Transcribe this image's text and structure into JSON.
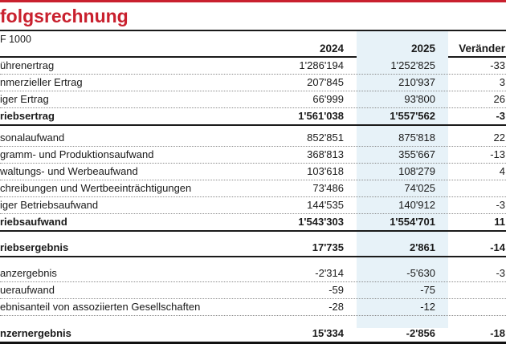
{
  "page": {
    "title": "folgsrechnung",
    "unit_label": "F 1000",
    "accent_red": "#c9202e",
    "highlight_blue": "#e7f2f8"
  },
  "table": {
    "columns": [
      "2024",
      "2025",
      "Veränder"
    ],
    "rows": [
      {
        "label": "ührenertrag",
        "v2024": "1'286'194",
        "v2025": "1'252'825",
        "change": "-33",
        "bold": false,
        "sep": "dotted",
        "gap": ""
      },
      {
        "label": "nmerzieller Ertrag",
        "v2024": "207'845",
        "v2025": "210'937",
        "change": "3",
        "bold": false,
        "sep": "dotted",
        "gap": ""
      },
      {
        "label": "iger Ertrag",
        "v2024": "66'999",
        "v2025": "93'800",
        "change": "26",
        "bold": false,
        "sep": "dotted",
        "gap": ""
      },
      {
        "label": "riebsertrag",
        "v2024": "1'561'038",
        "v2025": "1'557'562",
        "change": "-3",
        "bold": true,
        "sep": "solid",
        "gap": ""
      },
      {
        "label": "sonalaufwand",
        "v2024": "852'851",
        "v2025": "875'818",
        "change": "22",
        "bold": false,
        "sep": "dotted",
        "gap": "sm"
      },
      {
        "label": "gramm- und Produktionsaufwand",
        "v2024": "368'813",
        "v2025": "355'667",
        "change": "-13",
        "bold": false,
        "sep": "dotted",
        "gap": ""
      },
      {
        "label": "waltungs- und Werbeaufwand",
        "v2024": "103'618",
        "v2025": "108'279",
        "change": "4",
        "bold": false,
        "sep": "dotted",
        "gap": ""
      },
      {
        "label": "chreibungen und Wertbeeinträchtigungen",
        "v2024": "73'486",
        "v2025": "74'025",
        "change": "",
        "bold": false,
        "sep": "dotted",
        "gap": ""
      },
      {
        "label": "iger Betriebsaufwand",
        "v2024": "144'535",
        "v2025": "140'912",
        "change": "-3",
        "bold": false,
        "sep": "dotted",
        "gap": ""
      },
      {
        "label": "riebsaufwand",
        "v2024": "1'543'303",
        "v2025": "1'554'701",
        "change": "11",
        "bold": true,
        "sep": "solid",
        "gap": ""
      },
      {
        "label": "riebsergebnis",
        "v2024": "17'735",
        "v2025": "2'861",
        "change": "-14",
        "bold": true,
        "sep": "solid",
        "gap": "md"
      },
      {
        "label": "anzergebnis",
        "v2024": "-2'314",
        "v2025": "-5'630",
        "change": "-3",
        "bold": false,
        "sep": "dotted",
        "gap": "md"
      },
      {
        "label": "ueraufwand",
        "v2024": "-59",
        "v2025": "-75",
        "change": "",
        "bold": false,
        "sep": "dotted",
        "gap": ""
      },
      {
        "label": "ebnisanteil von assoziierten Gesellschaften",
        "v2024": "-28",
        "v2025": "-12",
        "change": "",
        "bold": false,
        "sep": "dotted",
        "gap": ""
      },
      {
        "label": "nzernergebnis",
        "v2024": "15'334",
        "v2025": "-2'856",
        "change": "-18",
        "bold": true,
        "sep": "thick",
        "gap": "lg"
      }
    ]
  }
}
